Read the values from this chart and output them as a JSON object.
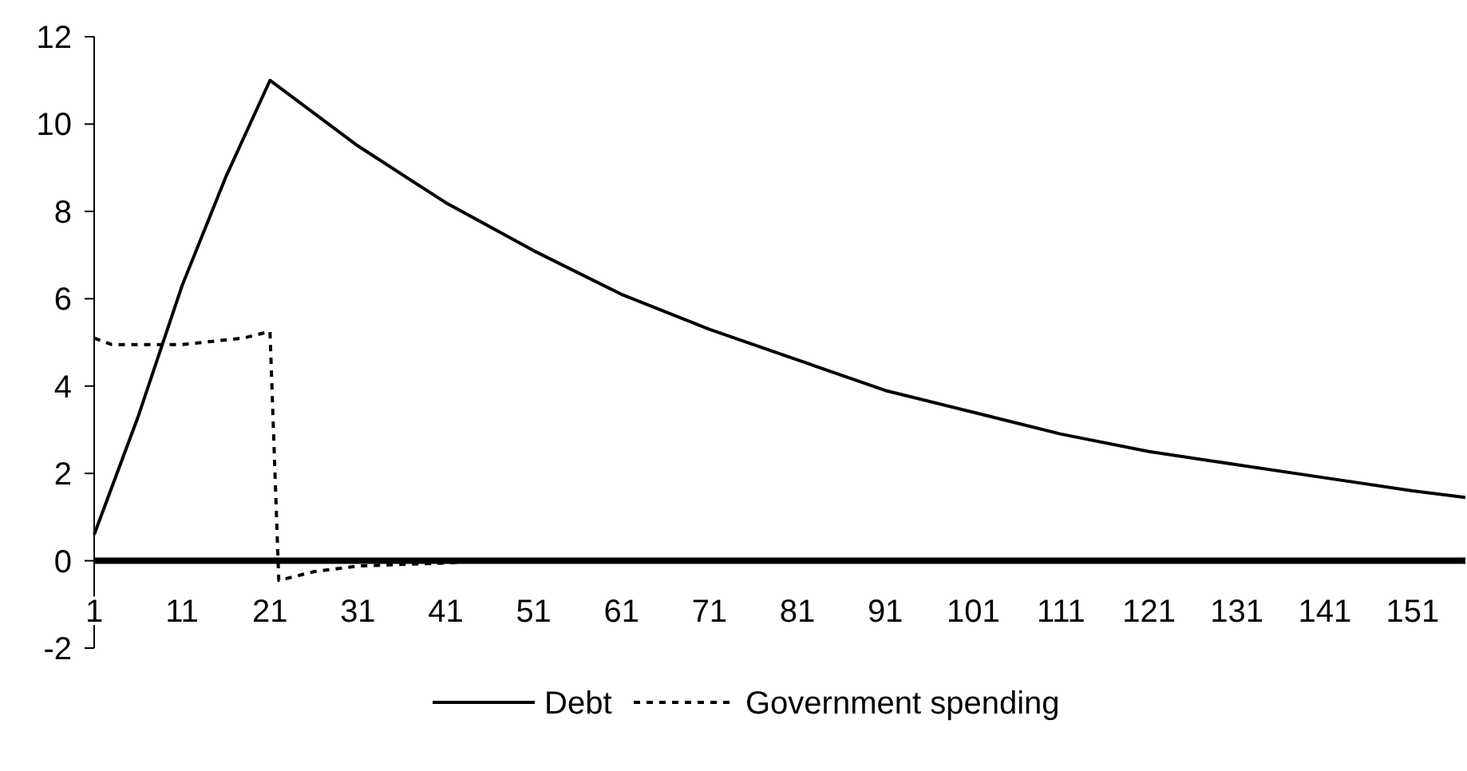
{
  "chart_data": {
    "type": "line",
    "xlim": [
      1,
      157
    ],
    "xticks": [
      1,
      11,
      21,
      31,
      41,
      51,
      61,
      71,
      81,
      91,
      101,
      111,
      121,
      131,
      141,
      151
    ],
    "ylim": [
      -2,
      12
    ],
    "yticks": [
      -2,
      0,
      2,
      4,
      6,
      8,
      10,
      12
    ],
    "grid": false,
    "legend": "bottom",
    "marker": "none",
    "series": [
      {
        "name": "Debt",
        "color": "#000000",
        "line_style": "solid",
        "x": [
          1,
          6,
          11,
          16,
          21,
          31,
          41,
          51,
          61,
          71,
          81,
          91,
          101,
          111,
          121,
          131,
          141,
          151,
          157
        ],
        "values": [
          0.6,
          3.3,
          6.3,
          8.8,
          11.0,
          9.5,
          8.2,
          7.1,
          6.1,
          5.3,
          4.6,
          3.9,
          3.4,
          2.9,
          2.5,
          2.2,
          1.9,
          1.6,
          1.45
        ]
      },
      {
        "name": "Government spending",
        "color": "#000000",
        "line_style": "dotted",
        "x": [
          1,
          3,
          11,
          18,
          21,
          22,
          26,
          31,
          41,
          45
        ],
        "values": [
          5.1,
          4.95,
          4.95,
          5.1,
          5.25,
          -0.45,
          -0.25,
          -0.12,
          -0.05,
          0
        ]
      }
    ]
  }
}
